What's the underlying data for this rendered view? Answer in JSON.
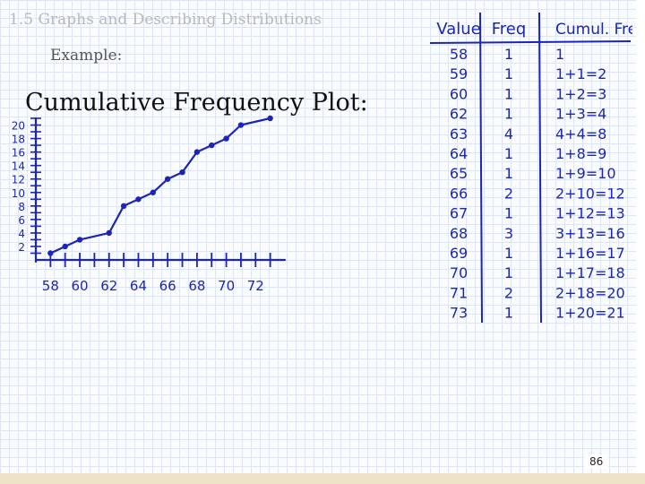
{
  "slide": {
    "header": "1.5 Graphs and Describing Distributions",
    "example_label": "Example:",
    "plot_title": "Cumulative Frequency Plot:",
    "page_number": "86",
    "ink_color": "#1c25b8"
  },
  "table": {
    "headers": [
      "Value",
      "Freq",
      "Cumul. Freq"
    ],
    "rows": [
      {
        "value": "58",
        "freq": "1",
        "cumul": "1"
      },
      {
        "value": "59",
        "freq": "1",
        "cumul": "1+1=2"
      },
      {
        "value": "60",
        "freq": "1",
        "cumul": "1+2=3"
      },
      {
        "value": "62",
        "freq": "1",
        "cumul": "1+3=4"
      },
      {
        "value": "63",
        "freq": "4",
        "cumul": "4+4=8"
      },
      {
        "value": "64",
        "freq": "1",
        "cumul": "1+8=9"
      },
      {
        "value": "65",
        "freq": "1",
        "cumul": "1+9=10"
      },
      {
        "value": "66",
        "freq": "2",
        "cumul": "2+10=12"
      },
      {
        "value": "67",
        "freq": "1",
        "cumul": "1+12=13"
      },
      {
        "value": "68",
        "freq": "3",
        "cumul": "3+13=16"
      },
      {
        "value": "69",
        "freq": "1",
        "cumul": "1+16=17"
      },
      {
        "value": "70",
        "freq": "1",
        "cumul": "1+17=18"
      },
      {
        "value": "71",
        "freq": "2",
        "cumul": "2+18=20"
      },
      {
        "value": "73",
        "freq": "1",
        "cumul": "1+20=21"
      }
    ]
  },
  "chart_data": {
    "type": "line",
    "title": "Cumulative Frequency Plot:",
    "xlabel": "",
    "ylabel": "",
    "x": [
      58,
      59,
      60,
      62,
      63,
      64,
      65,
      66,
      67,
      68,
      69,
      70,
      71,
      73
    ],
    "y": [
      1,
      2,
      3,
      4,
      8,
      9,
      10,
      12,
      13,
      16,
      17,
      18,
      20,
      21
    ],
    "xlim": [
      57,
      74
    ],
    "ylim": [
      0,
      21
    ],
    "x_ticks": [
      "58",
      "60",
      "62",
      "64",
      "66",
      "68",
      "70",
      "72"
    ],
    "y_ticks": [
      "2",
      "4",
      "6",
      "8",
      "10",
      "12",
      "14",
      "16",
      "18",
      "20"
    ],
    "grid": false,
    "legend": "none"
  }
}
